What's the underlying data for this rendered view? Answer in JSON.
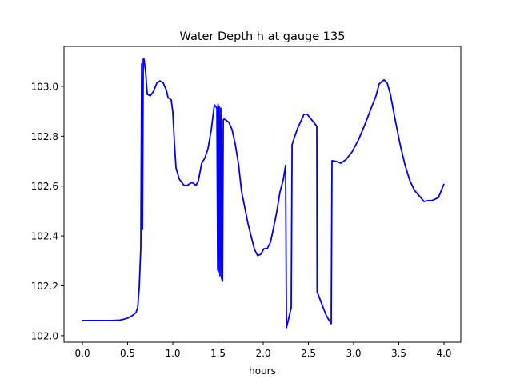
{
  "chart_data": {
    "type": "line",
    "title": "Water Depth h at gauge 135",
    "xlabel": "hours",
    "ylabel": "",
    "xlim": [
      -0.204,
      4.186
    ],
    "ylim": [
      101.974,
      103.16
    ],
    "xticks": [
      0.0,
      0.5,
      1.0,
      1.5,
      2.0,
      2.5,
      3.0,
      3.5,
      4.0
    ],
    "xtick_labels": [
      "0.0",
      "0.5",
      "1.0",
      "1.5",
      "2.0",
      "2.5",
      "3.0",
      "3.5",
      "4.0"
    ],
    "yticks": [
      102.0,
      102.2,
      102.4,
      102.6,
      102.8,
      103.0
    ],
    "ytick_labels": [
      "102.0",
      "102.2",
      "102.4",
      "102.6",
      "102.8",
      "103.0"
    ],
    "grid": false,
    "series": [
      {
        "name": "h",
        "color": "#0000ff",
        "x": [
          0,
          0.327,
          0.416,
          0.46,
          0.504,
          0.549,
          0.593,
          0.611,
          0.628,
          0.646,
          0.655,
          0.664,
          0.673,
          0.681,
          0.699,
          0.717,
          0.752,
          0.788,
          0.823,
          0.858,
          0.894,
          0.929,
          0.947,
          0.982,
          1.0,
          1.018,
          1.035,
          1.071,
          1.124,
          1.159,
          1.212,
          1.257,
          1.283,
          1.319,
          1.354,
          1.389,
          1.425,
          1.46,
          1.487,
          1.496,
          1.5,
          1.504,
          1.513,
          1.522,
          1.531,
          1.54,
          1.549,
          1.558,
          1.566,
          1.619,
          1.655,
          1.69,
          1.726,
          1.761,
          1.796,
          1.832,
          1.867,
          1.903,
          1.938,
          1.973,
          2.009,
          2.044,
          2.08,
          2.115,
          2.15,
          2.186,
          2.221,
          2.248,
          2.257,
          2.31,
          2.319,
          2.345,
          2.381,
          2.416,
          2.451,
          2.487,
          2.522,
          2.558,
          2.593,
          2.596,
          2.664,
          2.699,
          2.735,
          2.752,
          2.761,
          2.805,
          2.858,
          2.912,
          2.982,
          3.053,
          3.124,
          3.195,
          3.248,
          3.283,
          3.336,
          3.372,
          3.407,
          3.46,
          3.513,
          3.566,
          3.619,
          3.673,
          3.726,
          3.779,
          3.832,
          3.867,
          3.938,
          4.0
        ],
        "y": [
          102.061,
          102.061,
          102.0625,
          102.066,
          102.071,
          102.08,
          102.093,
          102.112,
          102.192,
          102.353,
          103.09,
          102.426,
          103.109,
          103.109,
          103.058,
          102.968,
          102.962,
          102.981,
          103.013,
          103.022,
          103.013,
          102.984,
          102.955,
          102.946,
          102.897,
          102.769,
          102.673,
          102.628,
          102.603,
          102.603,
          102.615,
          102.603,
          102.622,
          102.692,
          102.712,
          102.75,
          102.827,
          102.926,
          102.913,
          102.263,
          102.929,
          102.256,
          102.92,
          102.24,
          102.913,
          102.23,
          102.218,
          102.865,
          102.869,
          102.856,
          102.827,
          102.769,
          102.689,
          102.577,
          102.513,
          102.449,
          102.397,
          102.346,
          102.321,
          102.327,
          102.349,
          102.349,
          102.375,
          102.433,
          102.497,
          102.577,
          102.625,
          102.683,
          102.032,
          102.112,
          102.766,
          102.795,
          102.833,
          102.859,
          102.888,
          102.888,
          102.872,
          102.856,
          102.84,
          102.176,
          102.112,
          102.08,
          102.058,
          102.048,
          102.702,
          102.699,
          102.692,
          102.705,
          102.737,
          102.785,
          102.846,
          102.913,
          102.962,
          103.01,
          103.026,
          103.013,
          102.968,
          102.865,
          102.769,
          102.689,
          102.625,
          102.583,
          102.561,
          102.538,
          102.542,
          102.542,
          102.554,
          102.609
        ]
      }
    ]
  }
}
